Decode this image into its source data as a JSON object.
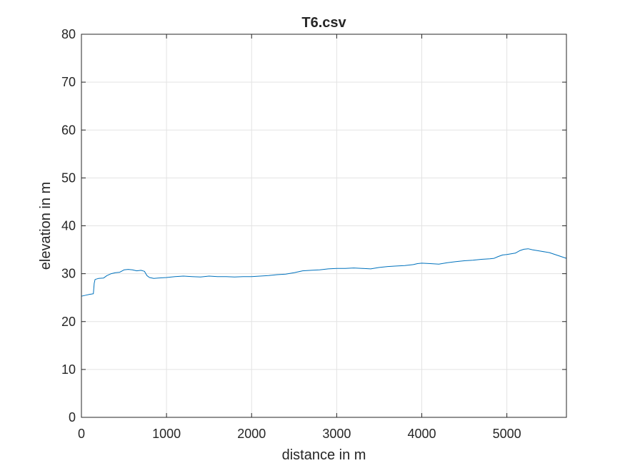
{
  "chart_data": {
    "type": "line",
    "title": "T6.csv",
    "xlabel": "distance in m",
    "ylabel": "elevation in m",
    "xlim": [
      0,
      5700
    ],
    "ylim": [
      0,
      80
    ],
    "xticks": [
      0,
      1000,
      2000,
      3000,
      4000,
      5000
    ],
    "yticks": [
      0,
      10,
      20,
      30,
      40,
      50,
      60,
      70,
      80
    ],
    "grid": true,
    "legend": "none",
    "series": [
      {
        "color": "#0072BD",
        "x": [
          0,
          50,
          100,
          140,
          150,
          160,
          200,
          260,
          300,
          350,
          400,
          450,
          500,
          550,
          600,
          650,
          700,
          740,
          770,
          800,
          850,
          900,
          1000,
          1100,
          1200,
          1300,
          1400,
          1500,
          1600,
          1700,
          1800,
          1900,
          2000,
          2100,
          2200,
          2300,
          2400,
          2500,
          2600,
          2700,
          2800,
          2900,
          3000,
          3100,
          3200,
          3300,
          3400,
          3500,
          3600,
          3700,
          3800,
          3900,
          3950,
          4000,
          4100,
          4200,
          4300,
          4400,
          4500,
          4600,
          4700,
          4800,
          4850,
          4900,
          4950,
          5000,
          5100,
          5150,
          5200,
          5250,
          5300,
          5400,
          5500,
          5600,
          5700
        ],
        "y": [
          25.3,
          25.5,
          25.7,
          25.8,
          28.0,
          28.8,
          29.0,
          29.1,
          29.6,
          30.0,
          30.2,
          30.3,
          30.8,
          30.9,
          30.8,
          30.6,
          30.7,
          30.5,
          29.6,
          29.2,
          29.0,
          29.1,
          29.2,
          29.4,
          29.5,
          29.4,
          29.3,
          29.5,
          29.4,
          29.4,
          29.3,
          29.4,
          29.4,
          29.5,
          29.6,
          29.8,
          29.9,
          30.2,
          30.6,
          30.7,
          30.8,
          31.0,
          31.1,
          31.1,
          31.2,
          31.1,
          31.0,
          31.3,
          31.5,
          31.6,
          31.7,
          31.9,
          32.1,
          32.2,
          32.1,
          32.0,
          32.3,
          32.5,
          32.7,
          32.8,
          33.0,
          33.1,
          33.2,
          33.6,
          33.9,
          34.0,
          34.3,
          34.8,
          35.1,
          35.2,
          35.0,
          34.7,
          34.4,
          33.8,
          33.2
        ]
      }
    ]
  }
}
